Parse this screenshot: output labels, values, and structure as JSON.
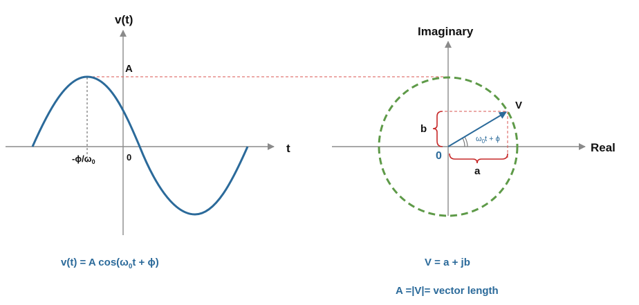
{
  "colors": {
    "axis": "#8a8a8a",
    "wave": "#2b6a9a",
    "dashed_red": "#d9534f",
    "circle": "#5e9a48",
    "bracket": "#c62828",
    "text_dark": "#111111",
    "text_blue": "#2b6a9a"
  },
  "time_plot": {
    "y_label": "v(t)",
    "x_label": "t",
    "amplitude_label": "A",
    "peak_label": "-ϕ/ω",
    "peak_label_sub": "0",
    "origin_label": "0",
    "equation": {
      "prefix": "v(t) = A cos(ω",
      "sub": "0",
      "suffix": "t + ϕ)"
    }
  },
  "phasor_plot": {
    "y_label": "Imaginary",
    "x_label": "Real",
    "vector_label": "V",
    "origin_label": "0",
    "real_part_label": "a",
    "imag_part_label": "b",
    "angle_label": {
      "prefix": "ω",
      "sub": "0",
      "suffix": "t + ϕ"
    },
    "equation": "V = a + jb",
    "length_note": "A =|V|= vector length"
  },
  "icons": {
    "arrowhead": "triangle-arrowhead-icon"
  }
}
